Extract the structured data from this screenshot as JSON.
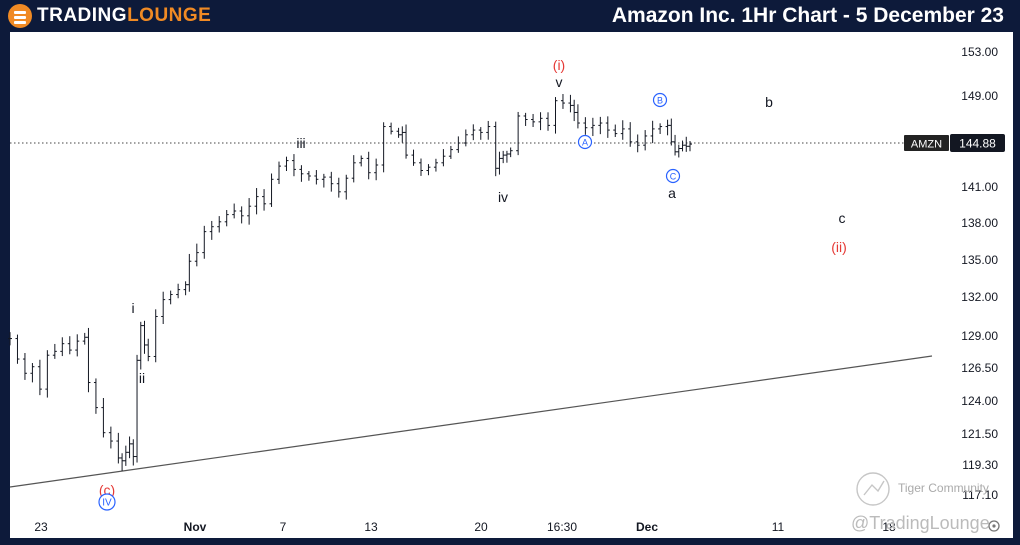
{
  "header": {
    "logo_part1": "TRADING",
    "logo_part2": "LOUNGE",
    "title": "Amazon Inc. 1Hr Chart - 5 December 23"
  },
  "chart_data": {
    "type": "candlestick",
    "symbol": "AMZN",
    "last_price": "144.88",
    "y_ticks": [
      "153.00",
      "149.00",
      "145.00",
      "141.00",
      "138.00",
      "135.00",
      "132.00",
      "129.00",
      "126.50",
      "124.00",
      "121.50",
      "119.30",
      "117.10"
    ],
    "x_ticks": [
      "23",
      "Nov",
      "7",
      "13",
      "20",
      "16:30",
      "Dec",
      "11",
      "18"
    ],
    "grid": false,
    "wave_labels": [
      "(i)",
      "v",
      "iii",
      "iv",
      "i",
      "ii",
      "(c)",
      "IV",
      "A",
      "B",
      "C",
      "a",
      "b",
      "c",
      "(ii)"
    ],
    "colors": {
      "background": "#ffffff",
      "bars": "#131722",
      "red_label": "#e53935",
      "blue_label": "#2962ff",
      "frame": "#0d1a3a"
    },
    "price_path": [
      [
        0,
        128.8
      ],
      [
        2,
        127.2
      ],
      [
        4,
        126.1
      ],
      [
        6,
        126.6
      ],
      [
        8,
        124.9
      ],
      [
        10,
        127.5
      ],
      [
        12,
        127.8
      ],
      [
        14,
        128.4
      ],
      [
        16,
        127.9
      ],
      [
        18,
        128.6
      ],
      [
        20,
        128.9
      ],
      [
        21,
        125.4
      ],
      [
        23,
        123.5
      ],
      [
        25,
        121.6
      ],
      [
        27,
        121.0
      ],
      [
        29,
        119.8
      ],
      [
        30,
        119.6
      ],
      [
        31,
        120.2
      ],
      [
        32,
        120.8
      ],
      [
        33,
        119.9
      ],
      [
        34,
        127.1
      ],
      [
        35,
        129.8
      ],
      [
        36,
        128.3
      ],
      [
        37,
        127.4
      ],
      [
        39,
        130.5
      ],
      [
        41,
        131.8
      ],
      [
        43,
        132.2
      ],
      [
        45,
        132.6
      ],
      [
        47,
        133.0
      ],
      [
        48,
        134.9
      ],
      [
        50,
        135.6
      ],
      [
        52,
        137.3
      ],
      [
        54,
        137.7
      ],
      [
        56,
        138.1
      ],
      [
        58,
        138.7
      ],
      [
        60,
        139.0
      ],
      [
        62,
        138.6
      ],
      [
        64,
        139.4
      ],
      [
        66,
        140.2
      ],
      [
        68,
        139.6
      ],
      [
        70,
        141.7
      ],
      [
        72,
        142.9
      ],
      [
        74,
        143.4
      ],
      [
        76,
        142.6
      ],
      [
        78,
        142.2
      ],
      [
        80,
        142.0
      ],
      [
        82,
        141.7
      ],
      [
        84,
        141.9
      ],
      [
        86,
        141.3
      ],
      [
        88,
        140.6
      ],
      [
        90,
        141.8
      ],
      [
        92,
        143.2
      ],
      [
        94,
        143.6
      ],
      [
        96,
        142.3
      ],
      [
        98,
        143.0
      ],
      [
        100,
        146.4
      ],
      [
        102,
        146.0
      ],
      [
        104,
        145.7
      ],
      [
        105,
        145.9
      ],
      [
        106,
        143.9
      ],
      [
        108,
        143.2
      ],
      [
        110,
        142.5
      ],
      [
        112,
        142.8
      ],
      [
        114,
        143.2
      ],
      [
        116,
        143.8
      ],
      [
        118,
        144.4
      ],
      [
        120,
        145.0
      ],
      [
        122,
        145.7
      ],
      [
        124,
        146.1
      ],
      [
        126,
        145.9
      ],
      [
        128,
        146.4
      ],
      [
        130,
        142.7
      ],
      [
        131,
        143.6
      ],
      [
        132,
        143.9
      ],
      [
        133,
        144.0
      ],
      [
        134,
        144.3
      ],
      [
        136,
        147.3
      ],
      [
        138,
        147.0
      ],
      [
        140,
        146.8
      ],
      [
        142,
        147.1
      ],
      [
        144,
        146.5
      ],
      [
        146,
        148.6
      ],
      [
        148,
        148.4
      ],
      [
        150,
        148.2
      ],
      [
        151,
        147.6
      ],
      [
        152,
        146.7
      ],
      [
        154,
        146.3
      ],
      [
        156,
        146.5
      ],
      [
        158,
        146.7
      ],
      [
        160,
        146.1
      ],
      [
        162,
        145.8
      ],
      [
        164,
        146.2
      ],
      [
        166,
        145.1
      ],
      [
        168,
        144.8
      ],
      [
        170,
        145.6
      ],
      [
        172,
        146.2
      ],
      [
        174,
        146.4
      ],
      [
        176,
        146.5
      ],
      [
        177,
        145.1
      ],
      [
        178,
        144.2
      ],
      [
        179,
        144.5
      ],
      [
        180,
        144.8
      ],
      [
        181,
        144.7
      ],
      [
        182,
        144.9
      ]
    ]
  }
}
